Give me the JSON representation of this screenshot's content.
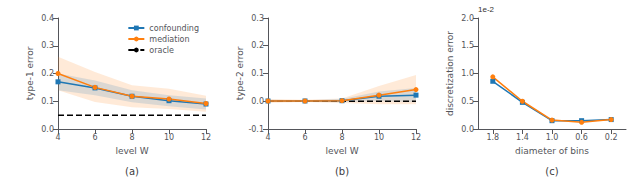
{
  "chart_data": [
    {
      "type": "line",
      "title": "(a)",
      "xlabel": "level W",
      "ylabel": "type-1 error",
      "x": [
        4,
        6,
        8,
        10,
        12
      ],
      "xlim": [
        4,
        12
      ],
      "xticks": [
        4,
        6,
        8,
        10,
        12
      ],
      "ylim": [
        0.0,
        0.4
      ],
      "yticks": [
        {
          "value": 0,
          "label": "0.0"
        },
        0.1,
        0.2,
        0.3,
        0.4
      ],
      "grid": false,
      "legend": "upper right",
      "series": [
        {
          "name": "confounding",
          "color": "#1f77b4",
          "marker": "square",
          "line_style": "solid",
          "values": [
            0.17,
            0.148,
            0.118,
            0.102,
            0.09
          ],
          "band_upper": [
            0.2,
            0.175,
            0.14,
            0.122,
            0.11
          ],
          "band_lower": [
            0.14,
            0.122,
            0.096,
            0.082,
            0.07
          ]
        },
        {
          "name": "mediation",
          "color": "#ff7f0e",
          "marker": "circle",
          "line_style": "solid",
          "values": [
            0.2,
            0.15,
            0.118,
            0.108,
            0.092
          ],
          "band_upper": [
            0.26,
            0.205,
            0.158,
            0.145,
            0.12
          ],
          "band_lower": [
            0.14,
            0.097,
            0.078,
            0.072,
            0.062
          ]
        },
        {
          "name": "oracle",
          "type": "hline",
          "color": "black",
          "line_style": "dashed",
          "value": 0.05
        }
      ]
    },
    {
      "type": "line",
      "title": "(b)",
      "xlabel": "level W",
      "ylabel": "type-2 error",
      "x": [
        4,
        6,
        8,
        10,
        12
      ],
      "xlim": [
        4,
        12
      ],
      "xticks": [
        4,
        6,
        8,
        10,
        12
      ],
      "ylim": [
        -0.1,
        0.3
      ],
      "yticks": [
        -0.1,
        {
          "value": 0,
          "label": "0.0"
        },
        0.1,
        0.2,
        0.3
      ],
      "grid": false,
      "series": [
        {
          "color": "#1f77b4",
          "marker": "square",
          "line_style": "solid",
          "values": [
            0.001,
            0.001,
            0.002,
            0.018,
            0.022
          ],
          "band_upper": [
            0.005,
            0.004,
            0.008,
            0.035,
            0.048
          ],
          "band_lower": [
            -0.003,
            -0.002,
            -0.004,
            0.001,
            -0.004
          ]
        },
        {
          "color": "#ff7f0e",
          "marker": "circle",
          "line_style": "solid",
          "values": [
            0.001,
            0.001,
            0.002,
            0.022,
            0.042
          ],
          "band_upper": [
            0.008,
            0.005,
            0.01,
            0.055,
            0.095
          ],
          "band_lower": [
            -0.006,
            -0.003,
            -0.006,
            -0.011,
            -0.011
          ]
        },
        {
          "type": "hline",
          "color": "black",
          "line_style": "dashed",
          "value": 0.0
        }
      ]
    },
    {
      "type": "line",
      "title": "(c)",
      "xlabel": "diameter of bins",
      "ylabel": "discretization error",
      "annotation": "1e-2",
      "x": [
        1.8,
        1.4,
        1.0,
        0.6,
        0.2
      ],
      "xlim": [
        2.0,
        0.0
      ],
      "xticks": [
        1.8,
        1.4,
        {
          "value": 1,
          "label": "1.0"
        },
        0.6,
        0.2
      ],
      "ylim": [
        0.0,
        2.0
      ],
      "yticks": [
        {
          "value": 0,
          "label": "0.0"
        },
        0.5,
        {
          "value": 1,
          "label": "1.0"
        },
        1.5,
        {
          "value": 2,
          "label": "2.0"
        }
      ],
      "grid": false,
      "series": [
        {
          "color": "#1f77b4",
          "marker": "square",
          "line_style": "solid",
          "values": [
            0.86,
            0.48,
            0.15,
            0.15,
            0.17
          ]
        },
        {
          "color": "#ff7f0e",
          "marker": "circle",
          "line_style": "solid",
          "values": [
            0.94,
            0.5,
            0.16,
            0.12,
            0.17
          ]
        }
      ]
    }
  ]
}
